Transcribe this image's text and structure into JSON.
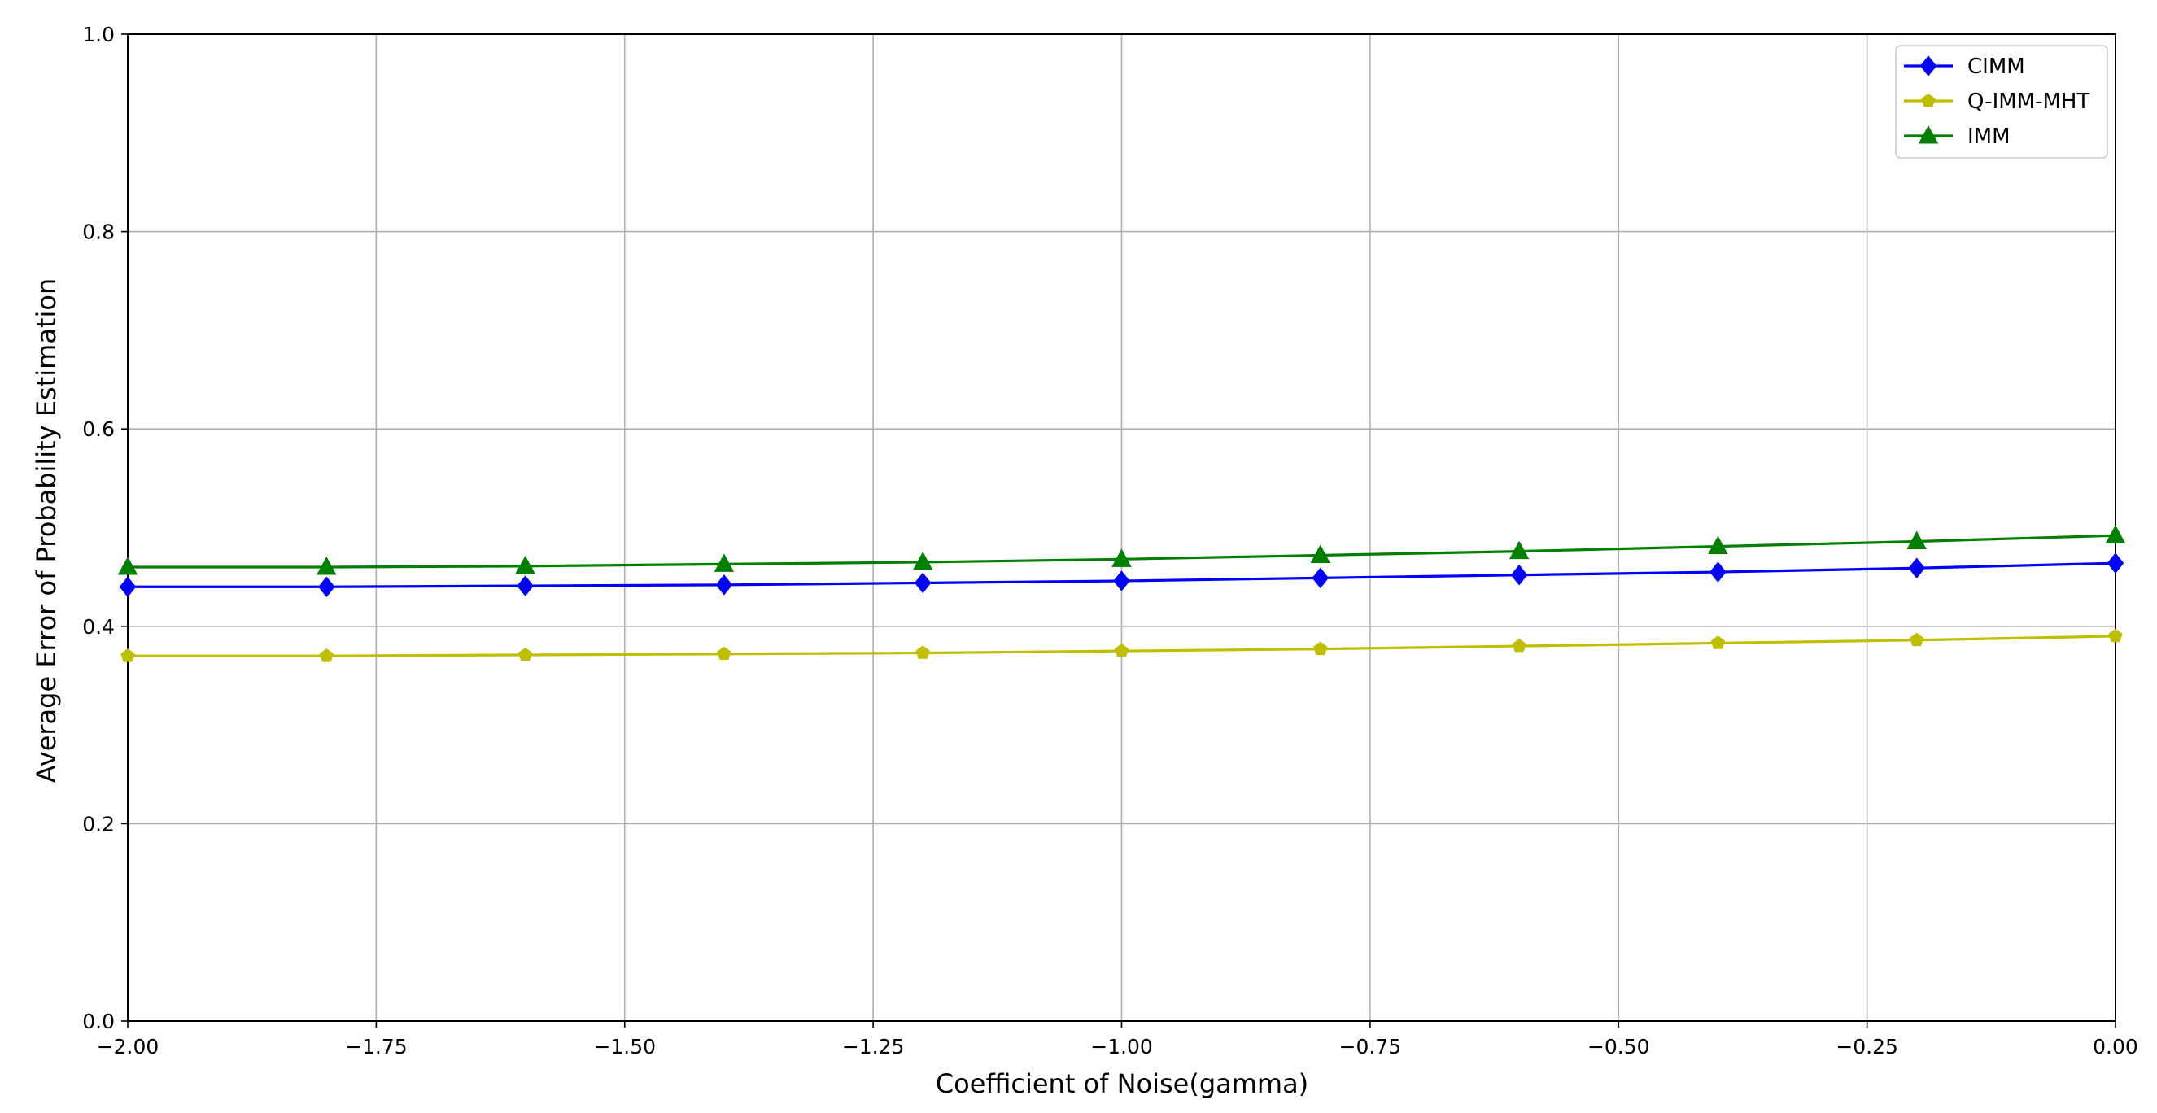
{
  "chart_data": {
    "type": "line",
    "title": "",
    "xlabel": "Coefficient of Noise(gamma)",
    "ylabel": "Average Error of Probability Estimation",
    "xlim": [
      -2.0,
      0.0
    ],
    "ylim": [
      0.0,
      1.0
    ],
    "grid": true,
    "legend_position": "top-right",
    "x_ticks": [
      -2.0,
      -1.75,
      -1.5,
      -1.25,
      -1.0,
      -0.75,
      -0.5,
      -0.25,
      0.0
    ],
    "x_tick_labels": [
      "−2.00",
      "−1.75",
      "−1.50",
      "−1.25",
      "−1.00",
      "−0.75",
      "−0.50",
      "−0.25",
      "0.00"
    ],
    "y_ticks": [
      0.0,
      0.2,
      0.4,
      0.6,
      0.8,
      1.0
    ],
    "y_tick_labels": [
      "0.0",
      "0.2",
      "0.4",
      "0.6",
      "0.8",
      "1.0"
    ],
    "x": [
      -2.0,
      -1.8,
      -1.6,
      -1.4,
      -1.2,
      -1.0,
      -0.8,
      -0.6,
      -0.4,
      -0.2,
      0.0
    ],
    "series": [
      {
        "name": "CIMM",
        "color": "#0000ff",
        "marker": "diamond",
        "values": [
          0.44,
          0.44,
          0.441,
          0.442,
          0.444,
          0.446,
          0.449,
          0.452,
          0.455,
          0.459,
          0.464
        ]
      },
      {
        "name": "Q-IMM-MHT",
        "color": "#bfbf00",
        "marker": "pentagon",
        "values": [
          0.37,
          0.37,
          0.371,
          0.372,
          0.373,
          0.375,
          0.377,
          0.38,
          0.383,
          0.386,
          0.39
        ]
      },
      {
        "name": "IMM",
        "color": "#008000",
        "marker": "triangle",
        "values": [
          0.46,
          0.46,
          0.461,
          0.463,
          0.465,
          0.468,
          0.472,
          0.476,
          0.481,
          0.486,
          0.492
        ]
      }
    ]
  }
}
